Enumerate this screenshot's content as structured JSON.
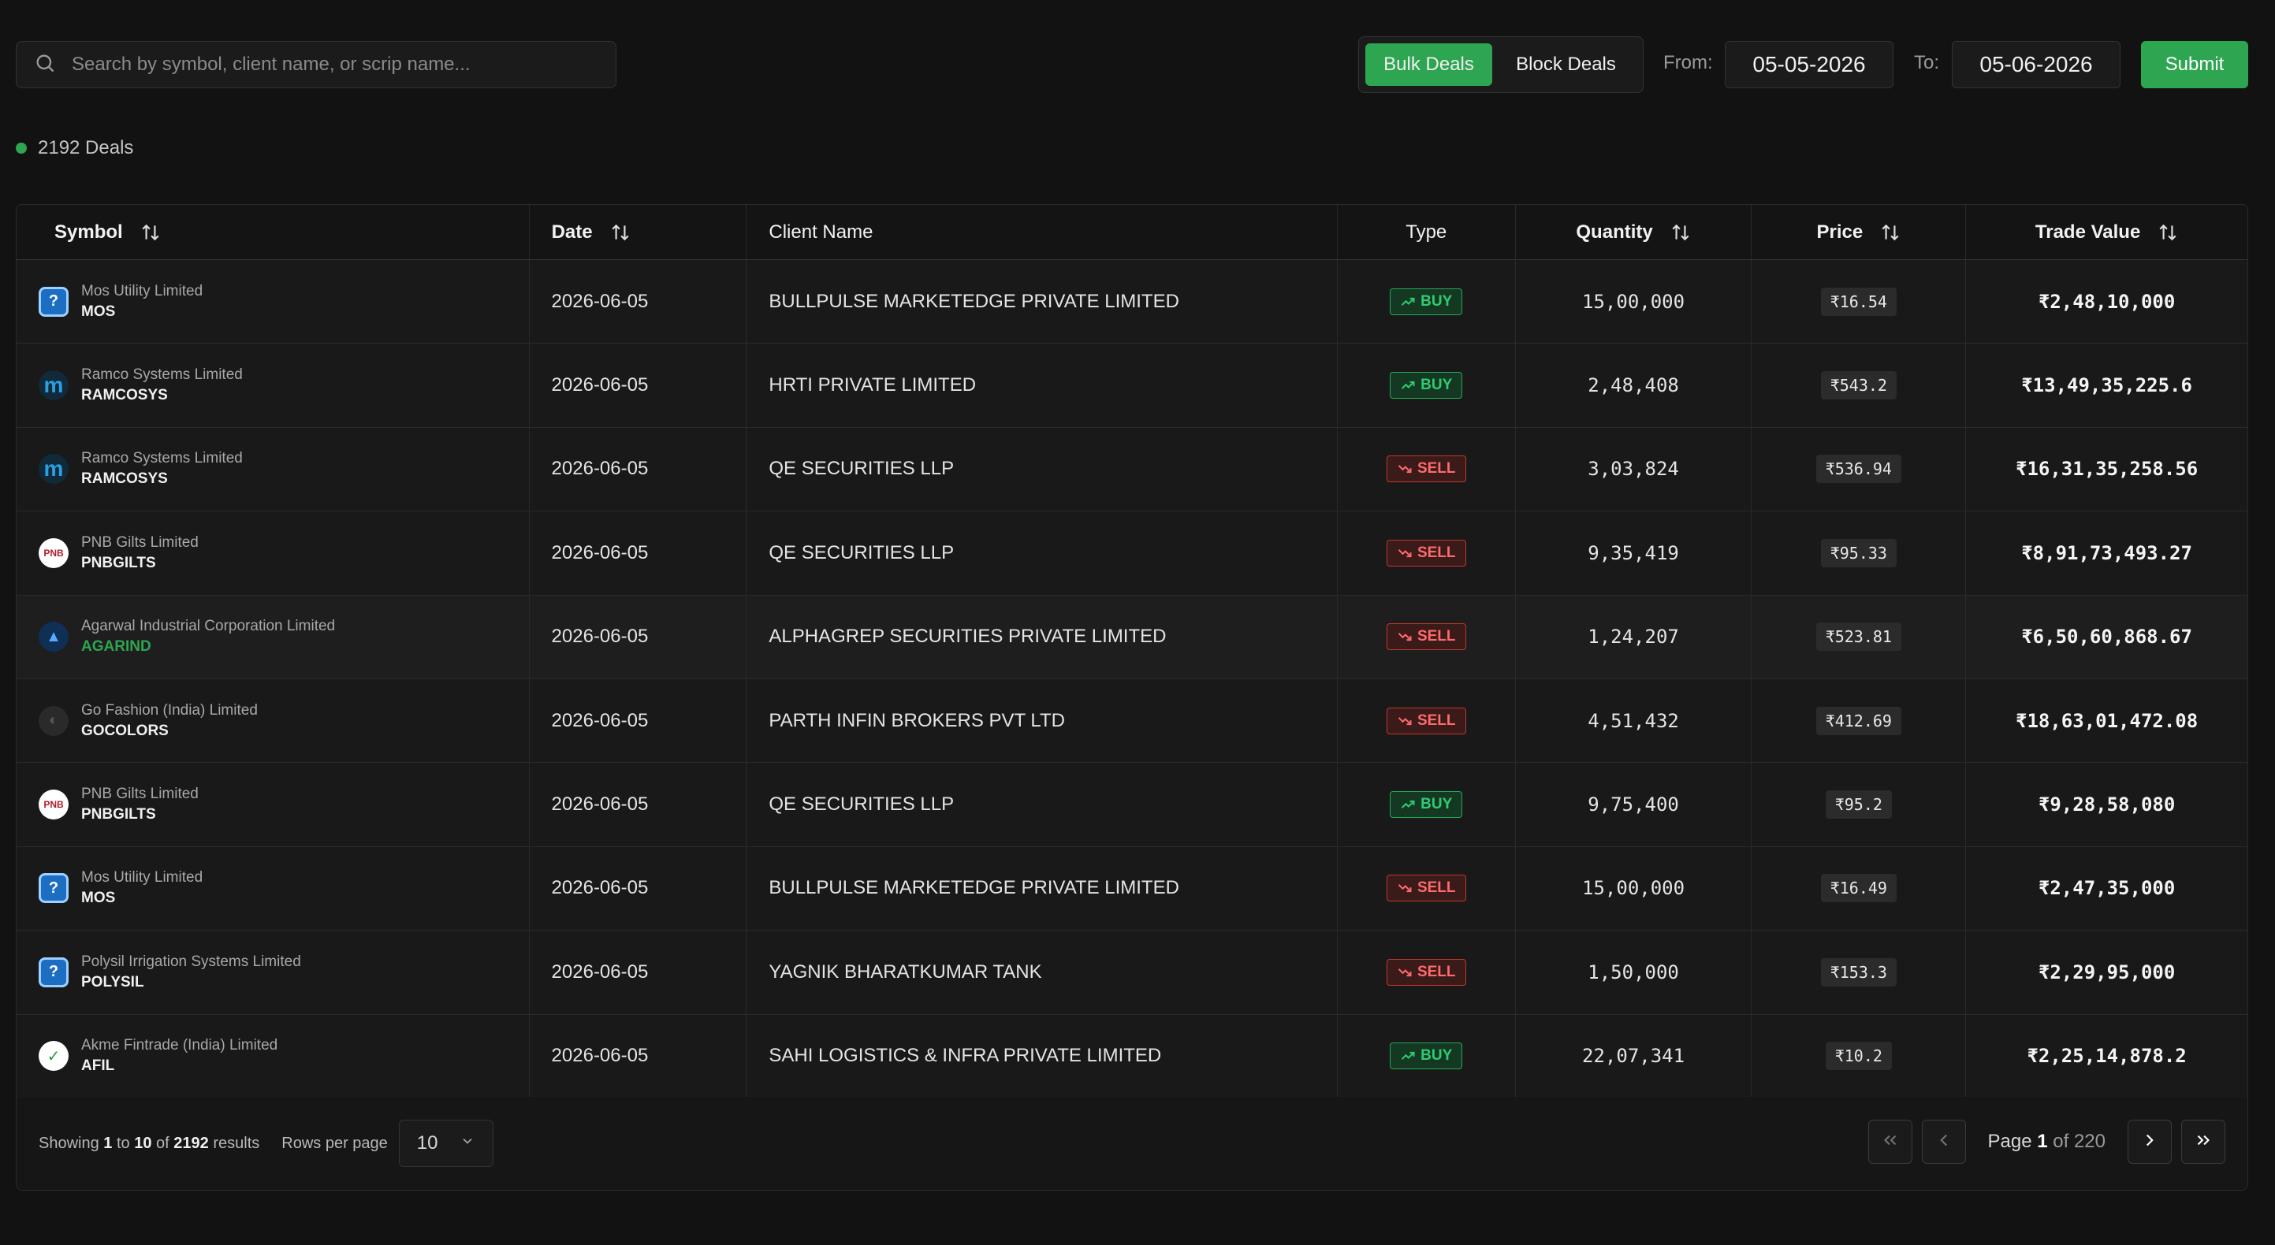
{
  "search": {
    "placeholder": "Search by symbol, client name, or scrip name..."
  },
  "tabs": {
    "bulk": "Bulk Deals",
    "block": "Block Deals"
  },
  "filters": {
    "from_label": "From:",
    "from_value": "05-05-2026",
    "to_label": "To:",
    "to_value": "05-06-2026",
    "submit": "Submit"
  },
  "summary": {
    "deals_count": "2192 Deals"
  },
  "columns": {
    "symbol": "Symbol",
    "date": "Date",
    "client": "Client Name",
    "type": "Type",
    "quantity": "Quantity",
    "price": "Price",
    "trade_value": "Trade Value"
  },
  "rows": [
    {
      "company": "Mos Utility Limited",
      "ticker": "MOS",
      "logo": "question-logo",
      "date": "2026-06-05",
      "client": "BULLPULSE MARKETEDGE PRIVATE LIMITED",
      "type": "BUY",
      "quantity": "15,00,000",
      "price": "₹16.54",
      "value": "₹2,48,10,000"
    },
    {
      "company": "Ramco Systems Limited",
      "ticker": "RAMCOSYS",
      "logo": "ramco-logo",
      "date": "2026-06-05",
      "client": "HRTI PRIVATE LIMITED",
      "type": "BUY",
      "quantity": "2,48,408",
      "price": "₹543.2",
      "value": "₹13,49,35,225.6"
    },
    {
      "company": "Ramco Systems Limited",
      "ticker": "RAMCOSYS",
      "logo": "ramco-logo",
      "date": "2026-06-05",
      "client": "QE SECURITIES LLP",
      "type": "SELL",
      "quantity": "3,03,824",
      "price": "₹536.94",
      "value": "₹16,31,35,258.56"
    },
    {
      "company": "PNB Gilts Limited",
      "ticker": "PNBGILTS",
      "logo": "pnb-logo",
      "date": "2026-06-05",
      "client": "QE SECURITIES LLP",
      "type": "SELL",
      "quantity": "9,35,419",
      "price": "₹95.33",
      "value": "₹8,91,73,493.27"
    },
    {
      "company": "Agarwal Industrial Corporation Limited",
      "ticker": "AGARIND",
      "logo": "agarwal-logo",
      "date": "2026-06-05",
      "client": "ALPHAGREP SECURITIES PRIVATE LIMITED",
      "type": "SELL",
      "quantity": "1,24,207",
      "price": "₹523.81",
      "value": "₹6,50,60,868.67"
    },
    {
      "company": "Go Fashion (India) Limited",
      "ticker": "GOCOLORS",
      "logo": "gocolors-logo",
      "date": "2026-06-05",
      "client": "PARTH INFIN BROKERS PVT LTD",
      "type": "SELL",
      "quantity": "4,51,432",
      "price": "₹412.69",
      "value": "₹18,63,01,472.08"
    },
    {
      "company": "PNB Gilts Limited",
      "ticker": "PNBGILTS",
      "logo": "pnb-logo",
      "date": "2026-06-05",
      "client": "QE SECURITIES LLP",
      "type": "BUY",
      "quantity": "9,75,400",
      "price": "₹95.2",
      "value": "₹9,28,58,080"
    },
    {
      "company": "Mos Utility Limited",
      "ticker": "MOS",
      "logo": "question-logo",
      "date": "2026-06-05",
      "client": "BULLPULSE MARKETEDGE PRIVATE LIMITED",
      "type": "SELL",
      "quantity": "15,00,000",
      "price": "₹16.49",
      "value": "₹2,47,35,000"
    },
    {
      "company": "Polysil Irrigation Systems Limited",
      "ticker": "POLYSIL",
      "logo": "question-logo",
      "date": "2026-06-05",
      "client": "YAGNIK BHARATKUMAR TANK",
      "type": "SELL",
      "quantity": "1,50,000",
      "price": "₹153.3",
      "value": "₹2,29,95,000"
    },
    {
      "company": "Akme Fintrade (India) Limited",
      "ticker": "AFIL",
      "logo": "afil-logo",
      "date": "2026-06-05",
      "client": "SAHI LOGISTICS & INFRA PRIVATE LIMITED",
      "type": "BUY",
      "quantity": "22,07,341",
      "price": "₹10.2",
      "value": "₹2,25,14,878.2"
    }
  ],
  "footer": {
    "showing": "Showing",
    "from": "1",
    "to_word": "to",
    "to": "10",
    "of_word": "of",
    "total": "2192",
    "results": "results",
    "rows_per_page_label": "Rows per page",
    "rows_per_page": "10",
    "page_word": "Page",
    "page": "1",
    "of_pages": "of 220"
  },
  "colors": {
    "accent": "#2ea551",
    "buy": "#2ecc71",
    "sell": "#ff6b6b",
    "background": "#121212"
  }
}
